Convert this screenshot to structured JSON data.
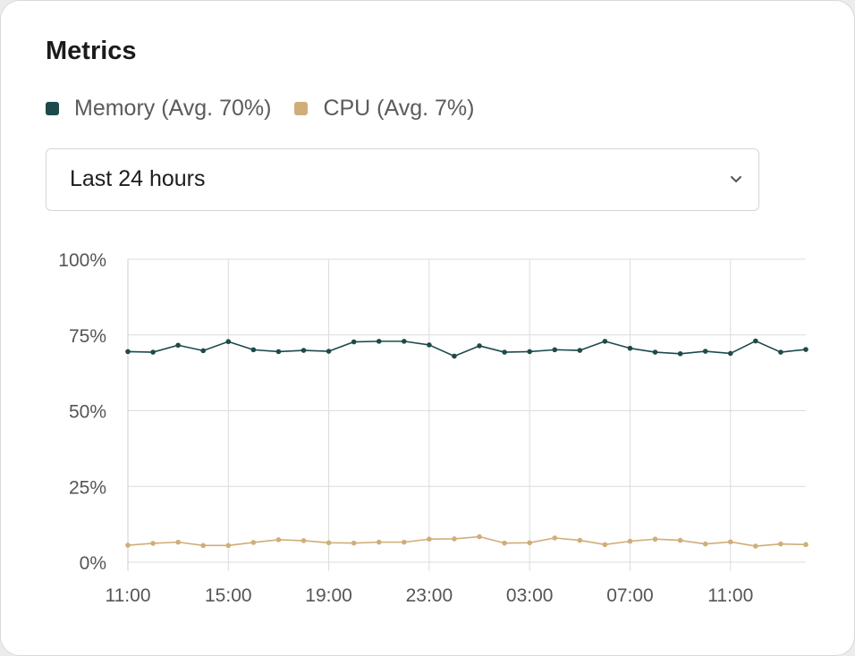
{
  "card": {
    "title": "Metrics"
  },
  "legend": [
    {
      "name": "Memory",
      "label": "Memory (Avg. 70%)",
      "color": "#1d4a4a"
    },
    {
      "name": "CPU",
      "label": "CPU (Avg. 7%)",
      "color": "#cfae78"
    }
  ],
  "range_select": {
    "value": "Last 24 hours",
    "icon": "chevron-down-icon"
  },
  "chart_data": {
    "type": "line",
    "title": "",
    "xlabel": "",
    "ylabel": "",
    "ylim": [
      0,
      100
    ],
    "grid": true,
    "y_ticks": [
      0,
      25,
      50,
      75,
      100
    ],
    "y_tick_labels": [
      "0%",
      "25%",
      "50%",
      "75%",
      "100%"
    ],
    "x_ticks": [
      0,
      4,
      8,
      12,
      16,
      20,
      24
    ],
    "x_tick_labels": [
      "11:00",
      "15:00",
      "19:00",
      "23:00",
      "03:00",
      "07:00",
      "11:00"
    ],
    "x": [
      0,
      1,
      2,
      3,
      4,
      5,
      6,
      7,
      8,
      9,
      10,
      11,
      12,
      13,
      14,
      15,
      16,
      17,
      18,
      19,
      20,
      21,
      22,
      23,
      24,
      25,
      26,
      27
    ],
    "series": [
      {
        "name": "Memory",
        "color": "#1d4a4a",
        "values": [
          69.5,
          69.3,
          71.6,
          69.8,
          72.8,
          70.1,
          69.5,
          69.9,
          69.6,
          72.7,
          72.9,
          72.9,
          71.7,
          68.0,
          71.4,
          69.3,
          69.5,
          70.1,
          69.9,
          72.9,
          70.6,
          69.3,
          68.8,
          69.6,
          68.9,
          73.0,
          69.3,
          70.2
        ]
      },
      {
        "name": "CPU",
        "color": "#cfae78",
        "values": [
          5.6,
          6.2,
          6.6,
          5.5,
          5.5,
          6.5,
          7.4,
          7.1,
          6.4,
          6.3,
          6.6,
          6.6,
          7.6,
          7.7,
          8.4,
          6.3,
          6.4,
          8.0,
          7.2,
          5.8,
          6.9,
          7.6,
          7.2,
          6.0,
          6.7,
          5.3,
          6.0,
          5.8
        ]
      }
    ]
  }
}
